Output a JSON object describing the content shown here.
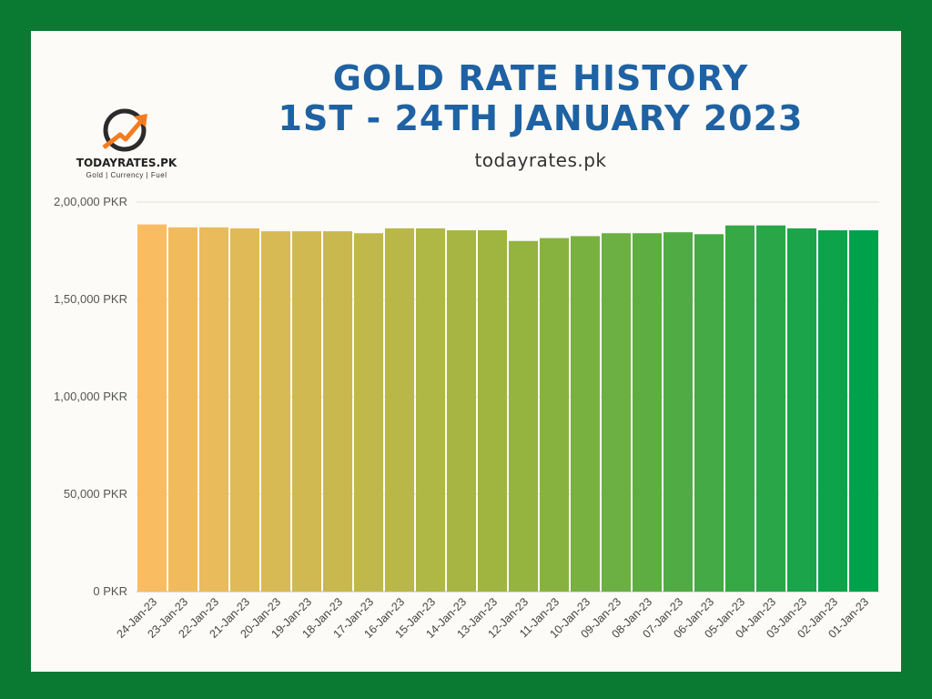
{
  "header": {
    "title_line1": "GOLD RATE HISTORY",
    "title_line2": "1ST - 24TH JANUARY 2023",
    "subtitle": "todayrates.pk"
  },
  "logo": {
    "name": "TODAYRATES.PK",
    "tagline": "Gold | Currency | Fuel"
  },
  "colors": {
    "background": "#0a7a32",
    "card": "#fcfbf7",
    "title": "#1f62a3",
    "bar_start": "#f9bc60",
    "bar_end": "#00a14b"
  },
  "chart_data": {
    "type": "bar",
    "ylim": [
      0,
      200000
    ],
    "yticks": [
      0,
      50000,
      100000,
      150000,
      200000
    ],
    "ytick_labels": [
      "0 PKR",
      "50,000 PKR",
      "1,00,000 PKR",
      "1,50,000 PKR",
      "2,00,000 PKR"
    ],
    "grid": true,
    "categories": [
      "24-Jan-23",
      "23-Jan-23",
      "22-Jan-23",
      "21-Jan-23",
      "20-Jan-23",
      "19-Jan-23",
      "18-Jan-23",
      "17-Jan-23",
      "16-Jan-23",
      "15-Jan-23",
      "14-Jan-23",
      "13-Jan-23",
      "12-Jan-23",
      "11-Jan-23",
      "10-Jan-23",
      "09-Jan-23",
      "08-Jan-23",
      "07-Jan-23",
      "06-Jan-23",
      "05-Jan-23",
      "04-Jan-23",
      "03-Jan-23",
      "02-Jan-23",
      "01-Jan-23"
    ],
    "values": [
      188500,
      187000,
      187000,
      186500,
      185000,
      185000,
      185000,
      184000,
      186500,
      186500,
      185500,
      185500,
      180000,
      181500,
      182500,
      184000,
      184000,
      184500,
      183500,
      188000,
      188000,
      186500,
      185500,
      185500
    ]
  }
}
